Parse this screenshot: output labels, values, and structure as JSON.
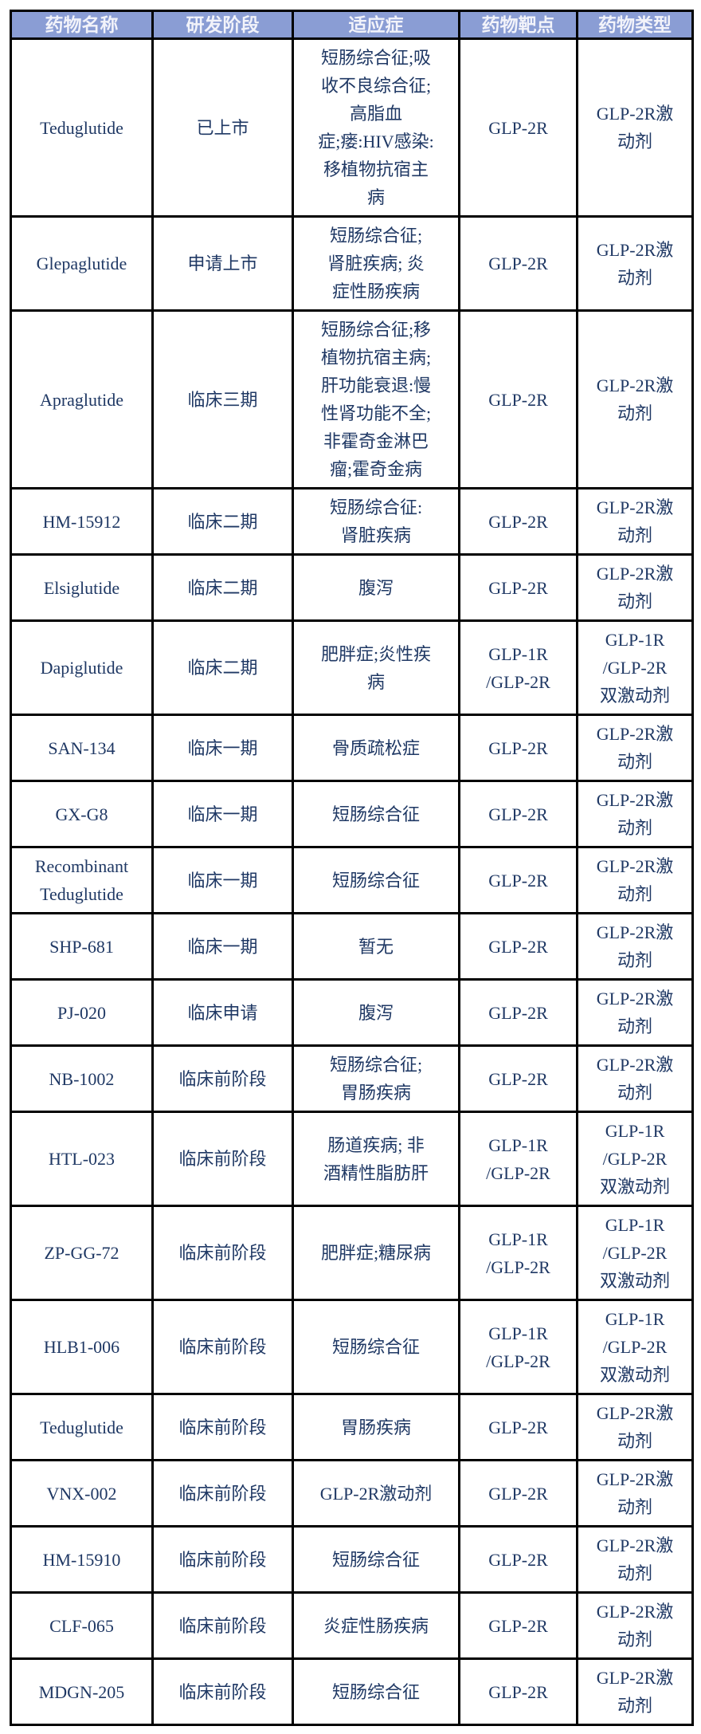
{
  "colors": {
    "header_bg": "#8A9DD4",
    "header_text": "#F2F3FA",
    "body_text": "#1F3864",
    "grid_border": "#000000",
    "page_bg": "#FFFFFF"
  },
  "table": {
    "columns": [
      {
        "key": "name",
        "label": "药物名称"
      },
      {
        "key": "stage",
        "label": "研发阶段"
      },
      {
        "key": "indication",
        "label": "适应症"
      },
      {
        "key": "target",
        "label": "药物靶点"
      },
      {
        "key": "type",
        "label": "药物类型"
      }
    ],
    "rows": [
      {
        "name": "Teduglutide",
        "stage": "已上市",
        "indication": "短肠综合征;吸\n收不良综合征;\n高脂血\n症;瘘:HIV感染:\n移植物抗宿主\n病",
        "target": "GLP-2R",
        "type": "GLP-2R激\n动剂"
      },
      {
        "name": "Glepaglutide",
        "stage": "申请上市",
        "indication": "短肠综合征;\n肾脏疾病; 炎\n症性肠疾病",
        "target": "GLP-2R",
        "type": "GLP-2R激\n动剂"
      },
      {
        "name": "Apraglutide",
        "stage": "临床三期",
        "indication": "短肠综合征;移\n植物抗宿主病;\n肝功能衰退:慢\n性肾功能不全;\n非霍奇金淋巴\n瘤;霍奇金病",
        "target": "GLP-2R",
        "type": "GLP-2R激\n动剂"
      },
      {
        "name": "HM-15912",
        "stage": "临床二期",
        "indication": "短肠综合征:\n肾脏疾病",
        "target": "GLP-2R",
        "type": "GLP-2R激\n动剂"
      },
      {
        "name": "Elsiglutide",
        "stage": "临床二期",
        "indication": "腹泻",
        "target": "GLP-2R",
        "type": "GLP-2R激\n动剂"
      },
      {
        "name": "Dapiglutide",
        "stage": "临床二期",
        "indication": "肥胖症;炎性疾\n病",
        "target": "GLP-1R\n/GLP-2R",
        "type": "GLP-1R\n/GLP-2R\n双激动剂"
      },
      {
        "name": "SAN-134",
        "stage": "临床一期",
        "indication": "骨质疏松症",
        "target": "GLP-2R",
        "type": "GLP-2R激\n动剂"
      },
      {
        "name": "GX-G8",
        "stage": "临床一期",
        "indication": "短肠综合征",
        "target": "GLP-2R",
        "type": "GLP-2R激\n动剂"
      },
      {
        "name": "Recombinant\nTeduglutide",
        "stage": "临床一期",
        "indication": "短肠综合征",
        "target": "GLP-2R",
        "type": "GLP-2R激\n动剂"
      },
      {
        "name": "SHP-681",
        "stage": "临床一期",
        "indication": "暂无",
        "target": "GLP-2R",
        "type": "GLP-2R激\n动剂"
      },
      {
        "name": "PJ-020",
        "stage": "临床申请",
        "indication": "腹泻",
        "target": "GLP-2R",
        "type": "GLP-2R激\n动剂"
      },
      {
        "name": "NB-1002",
        "stage": "临床前阶段",
        "indication": "短肠综合征;\n胃肠疾病",
        "target": "GLP-2R",
        "type": "GLP-2R激\n动剂"
      },
      {
        "name": "HTL-023",
        "stage": "临床前阶段",
        "indication": "肠道疾病; 非\n酒精性脂肪肝",
        "target": "GLP-1R\n/GLP-2R",
        "type": "GLP-1R\n/GLP-2R\n双激动剂"
      },
      {
        "name": "ZP-GG-72",
        "stage": "临床前阶段",
        "indication": "肥胖症;糖尿病",
        "target": "GLP-1R\n/GLP-2R",
        "type": "GLP-1R\n/GLP-2R\n双激动剂"
      },
      {
        "name": "HLB1-006",
        "stage": "临床前阶段",
        "indication": "短肠综合征",
        "target": "GLP-1R\n/GLP-2R",
        "type": "GLP-1R\n/GLP-2R\n双激动剂"
      },
      {
        "name": "Teduglutide",
        "stage": "临床前阶段",
        "indication": "胃肠疾病",
        "target": "GLP-2R",
        "type": "GLP-2R激\n动剂"
      },
      {
        "name": "VNX-002",
        "stage": "临床前阶段",
        "indication": "GLP-2R激动剂",
        "target": "GLP-2R",
        "type": "GLP-2R激\n动剂"
      },
      {
        "name": "HM-15910",
        "stage": "临床前阶段",
        "indication": "短肠综合征",
        "target": "GLP-2R",
        "type": "GLP-2R激\n动剂"
      },
      {
        "name": "CLF-065",
        "stage": "临床前阶段",
        "indication": "炎症性肠疾病",
        "target": "GLP-2R",
        "type": "GLP-2R激\n动剂"
      },
      {
        "name": "MDGN-205",
        "stage": "临床前阶段",
        "indication": "短肠综合征",
        "target": "GLP-2R",
        "type": "GLP-2R激\n动剂"
      }
    ]
  }
}
